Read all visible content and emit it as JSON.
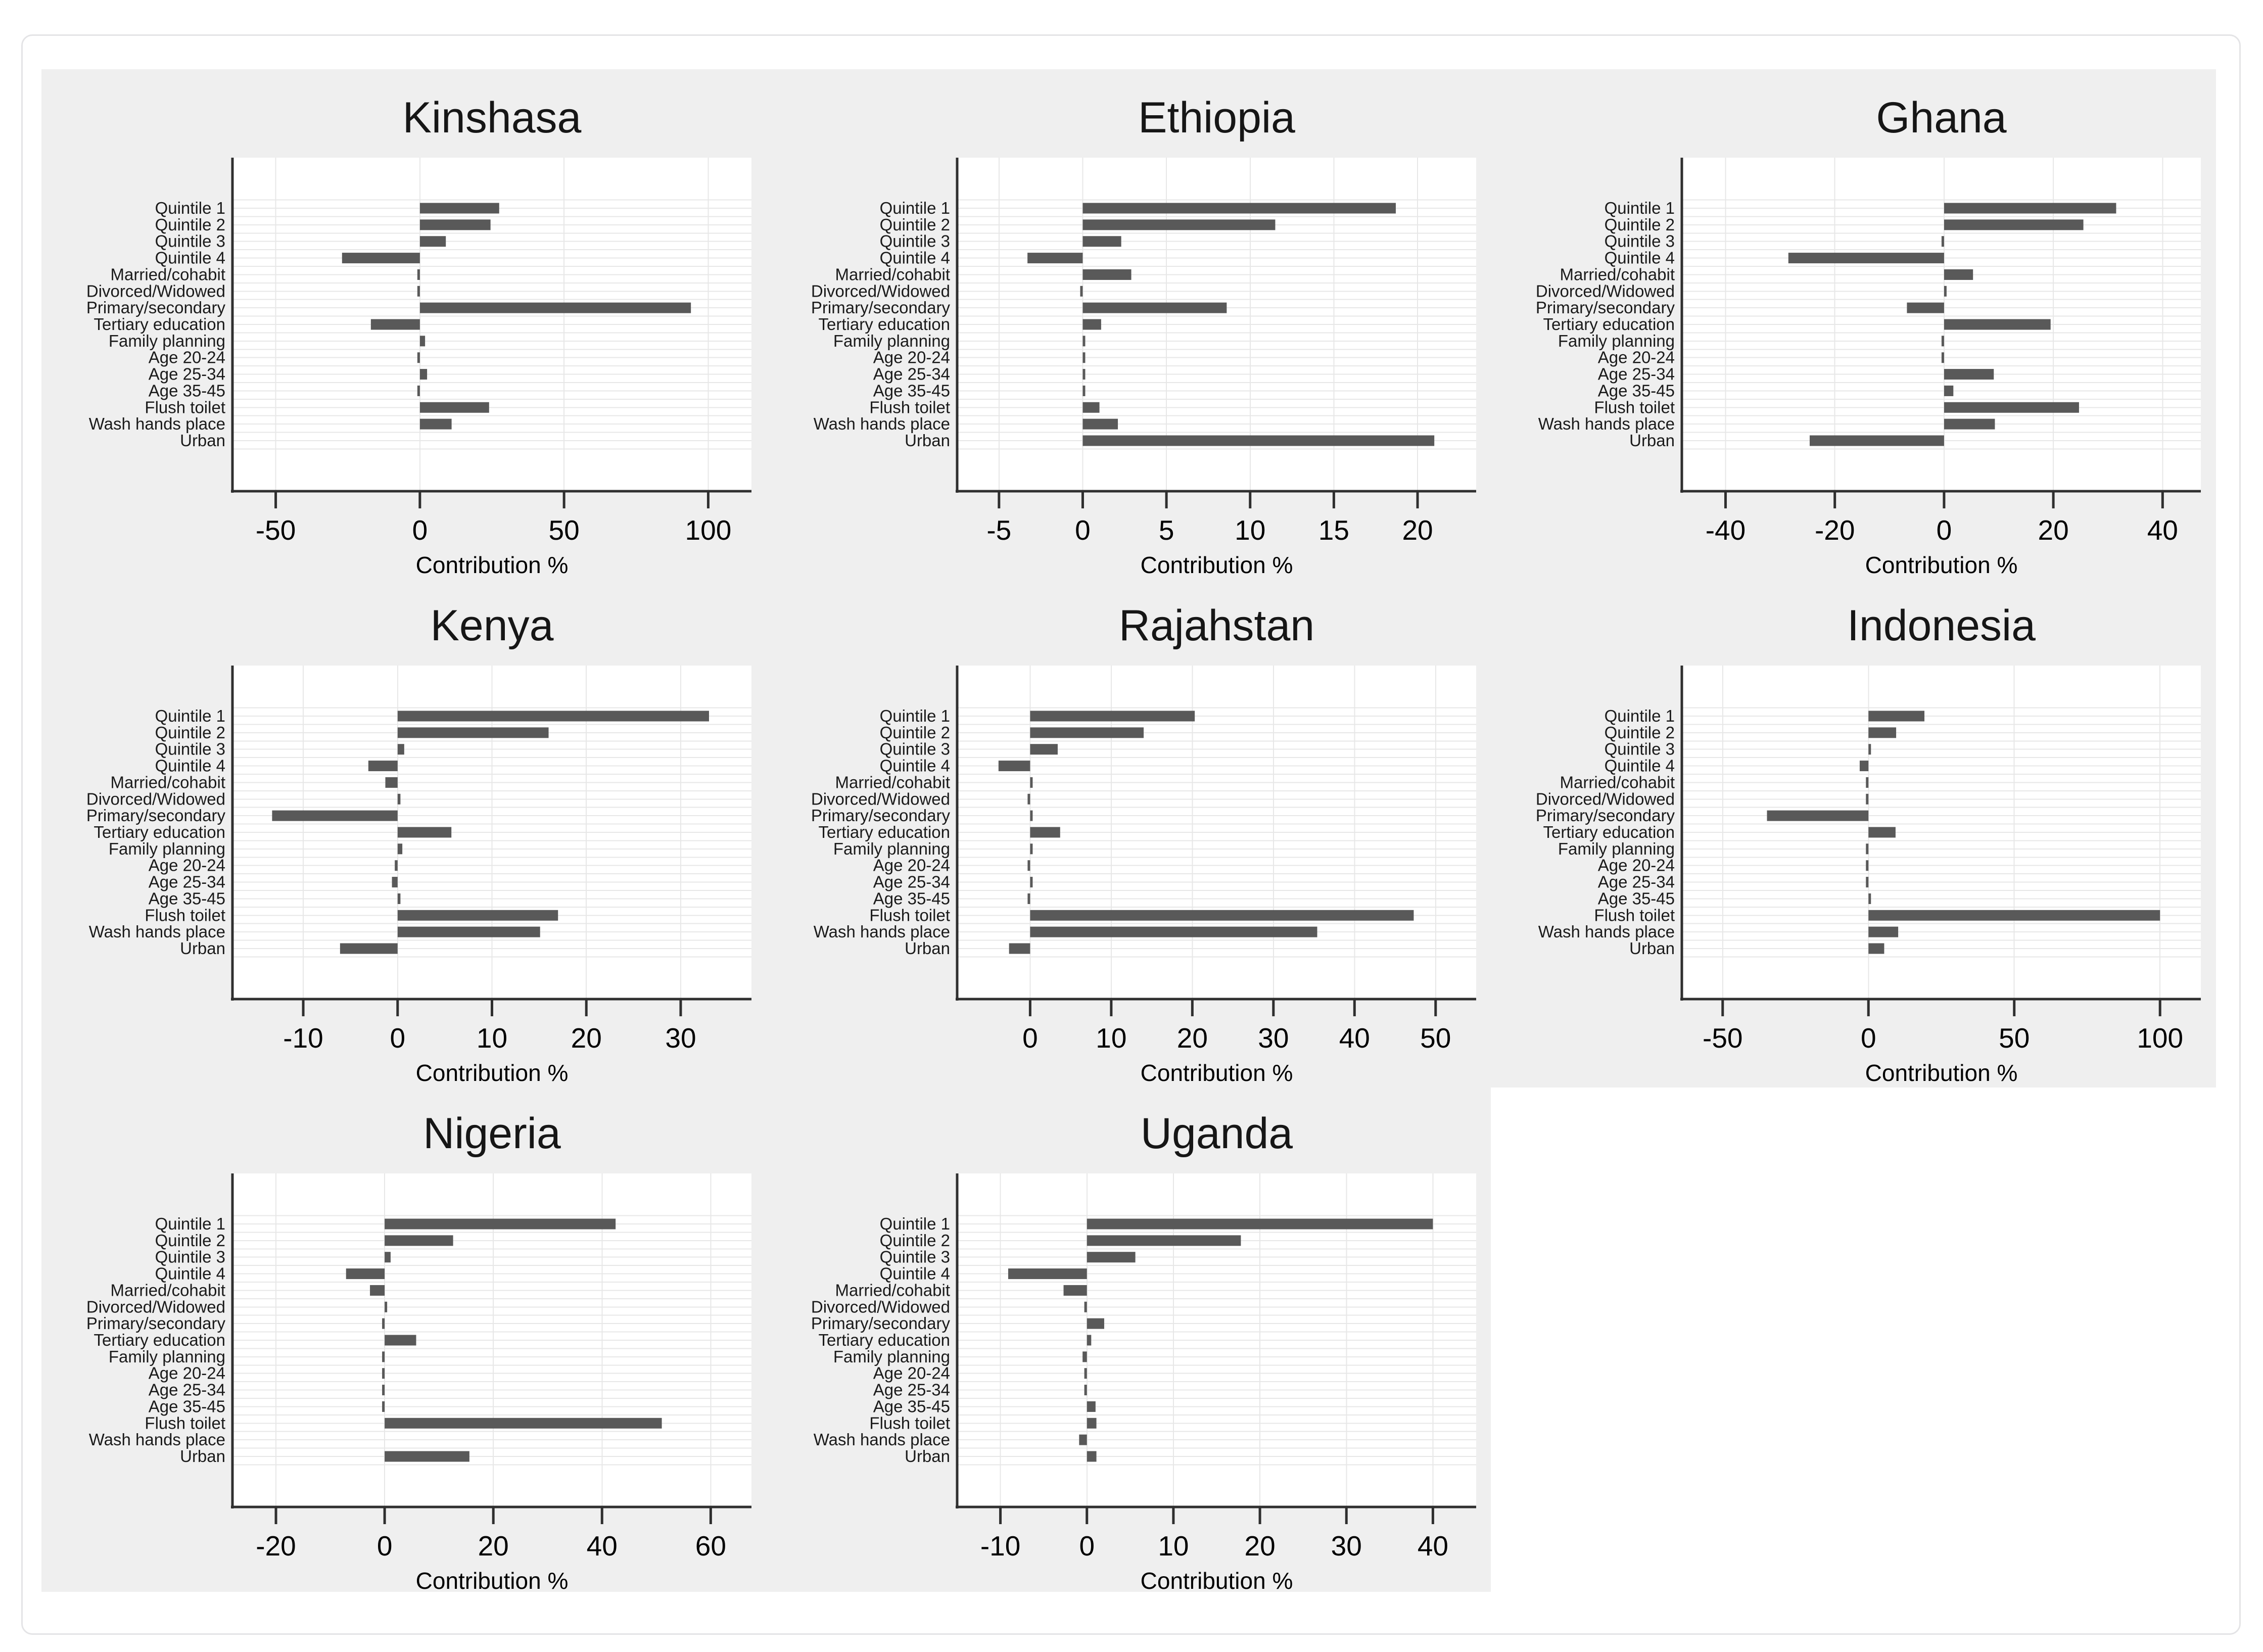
{
  "page": {
    "background": "#ffffff",
    "card_border_color": "#e4e4e6",
    "figure_background": "#efefef"
  },
  "chart_data": {
    "type": "bar",
    "orientation": "horizontal",
    "bar_color": "#595959",
    "axis_color": "#2f2f2f",
    "grid_color": "#e7e7e7",
    "plot_background": "#ffffff",
    "title_color": "#161616",
    "grid": true,
    "xlabel": "Contribution %",
    "categories": [
      "Quintile 1",
      "Quintile 2",
      "Quintile 3",
      "Quintile 4",
      "Married/cohabit",
      "Divorced/Widowed",
      "Primary/secondary",
      "Tertiary education",
      "Family planning",
      "Age 20-24",
      "Age 25-34",
      "Age 35-45",
      "Flush toilet",
      "Wash hands place",
      "Urban"
    ],
    "panels": [
      {
        "title": "Kinshasa",
        "row": 0,
        "col": 0,
        "xlim": [
          -65,
          115
        ],
        "xticks": [
          -50,
          0,
          50,
          100
        ],
        "values": [
          27.5,
          24.5,
          9,
          -27,
          -0.4,
          -0.4,
          94,
          -17,
          1.8,
          -0.4,
          2.5,
          -0.4,
          24,
          11,
          0
        ]
      },
      {
        "title": "Ethiopia",
        "row": 0,
        "col": 1,
        "xlim": [
          -7.5,
          23.5
        ],
        "xticks": [
          -5,
          0,
          5,
          10,
          15,
          20
        ],
        "values": [
          18.7,
          11.5,
          2.3,
          -3.3,
          2.9,
          -0.15,
          8.6,
          1.1,
          0.15,
          0.15,
          0.15,
          0.15,
          1.0,
          2.1,
          21
        ]
      },
      {
        "title": "Ghana",
        "row": 0,
        "col": 2,
        "xlim": [
          -48,
          47
        ],
        "xticks": [
          -40,
          -20,
          0,
          20,
          40
        ],
        "values": [
          31.5,
          25.5,
          -0.4,
          -28.5,
          5.3,
          0.4,
          -6.8,
          19.5,
          -0.4,
          -0.4,
          9.1,
          1.7,
          24.7,
          9.3,
          -24.6
        ]
      },
      {
        "title": "Kenya",
        "row": 1,
        "col": 0,
        "xlim": [
          -17.5,
          37.5
        ],
        "xticks": [
          -10,
          0,
          10,
          20,
          30
        ],
        "values": [
          33,
          16,
          0.7,
          -3.1,
          -1.3,
          0.3,
          -13.3,
          5.7,
          0.5,
          -0.3,
          -0.6,
          0.3,
          17,
          15.1,
          -6.1
        ]
      },
      {
        "title": "Rajahstan",
        "row": 1,
        "col": 1,
        "xlim": [
          -9,
          55
        ],
        "xticks": [
          0,
          10,
          20,
          30,
          40,
          50
        ],
        "values": [
          20.3,
          14,
          3.4,
          -3.9,
          0.2,
          -0.2,
          0.2,
          3.7,
          0.2,
          -0.2,
          0.2,
          -0.3,
          47.3,
          35.4,
          -2.6
        ]
      },
      {
        "title": "Indonesia",
        "row": 1,
        "col": 2,
        "xlim": [
          -64,
          114
        ],
        "xticks": [
          -50,
          0,
          50,
          100
        ],
        "values": [
          19.2,
          9.5,
          0.4,
          -3,
          -0.3,
          -0.3,
          -34.8,
          9.3,
          -0.3,
          -0.3,
          -0.3,
          0.6,
          100,
          10.2,
          5.4
        ]
      },
      {
        "title": "Nigeria",
        "row": 2,
        "col": 0,
        "xlim": [
          -28,
          67.5
        ],
        "xticks": [
          -20,
          0,
          20,
          40,
          60
        ],
        "values": [
          42.5,
          12.6,
          1.1,
          -7.1,
          -2.7,
          0.3,
          -0.3,
          5.8,
          -0.3,
          -0.3,
          -0.3,
          -0.4,
          51,
          0,
          15.6
        ]
      },
      {
        "title": "Uganda",
        "row": 2,
        "col": 1,
        "xlim": [
          -15,
          45
        ],
        "xticks": [
          -10,
          0,
          10,
          20,
          30,
          40
        ],
        "values": [
          40,
          17.8,
          5.6,
          -9.1,
          -2.7,
          -0.3,
          2.0,
          0.5,
          -0.5,
          -0.3,
          -0.3,
          1.0,
          1.1,
          -0.9,
          1.1
        ]
      }
    ]
  }
}
